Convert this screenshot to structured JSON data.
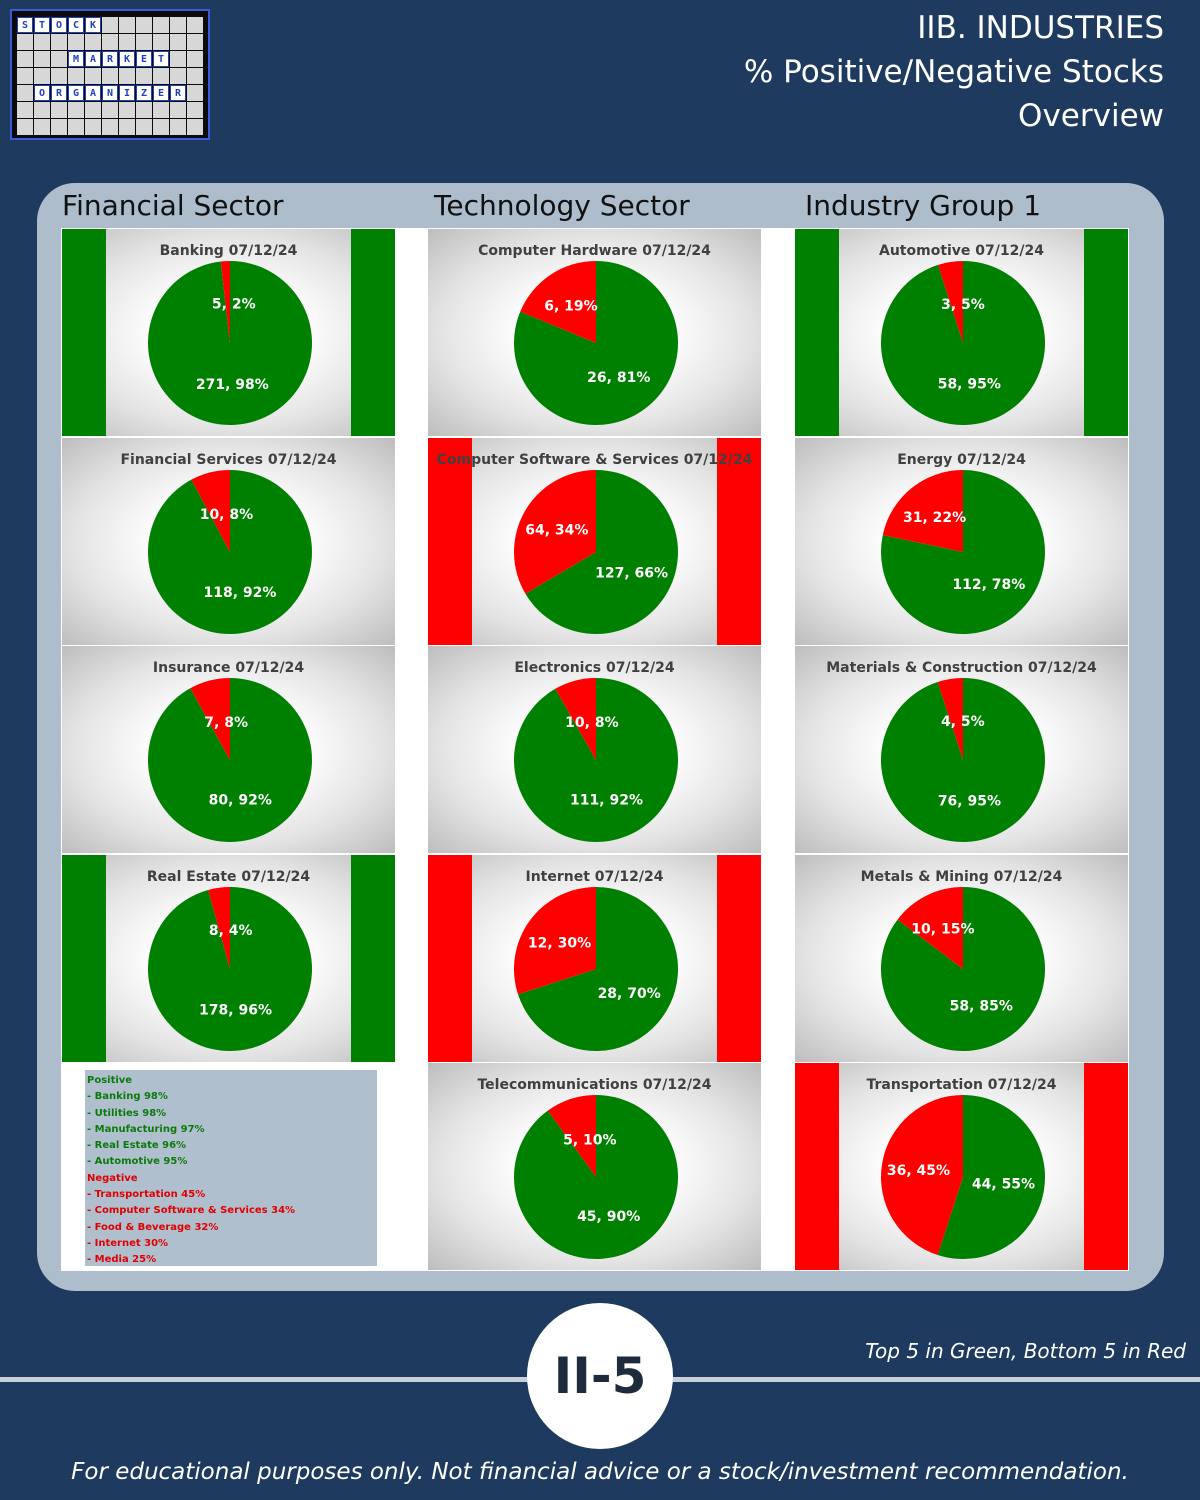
{
  "logo": {
    "words": [
      "STOCK",
      "MARKET",
      "ORGANIZER"
    ]
  },
  "header": {
    "line1": "IIB. INDUSTRIES",
    "line2": "% Positive/Negative Stocks",
    "line3": "Overview"
  },
  "sectors": [
    "Financial Sector",
    "Technology Sector",
    "Industry Group 1"
  ],
  "colors": {
    "positive": "#008000",
    "negative": "#ff0000",
    "background": "#1e3a5f"
  },
  "chart_data": [
    {
      "type": "pie",
      "title": "Banking 07/12/24",
      "categories": [
        "Negative",
        "Positive"
      ],
      "values": [
        5,
        271
      ],
      "percents": [
        2,
        98
      ],
      "labels": [
        "5, 2%",
        "271, 98%"
      ],
      "highlight": "top5"
    },
    {
      "type": "pie",
      "title": "Computer Hardware 07/12/24",
      "categories": [
        "Negative",
        "Positive"
      ],
      "values": [
        6,
        26
      ],
      "percents": [
        19,
        81
      ],
      "labels": [
        "6, 19%",
        "26, 81%"
      ],
      "highlight": "none"
    },
    {
      "type": "pie",
      "title": "Automotive 07/12/24",
      "categories": [
        "Negative",
        "Positive"
      ],
      "values": [
        3,
        58
      ],
      "percents": [
        5,
        95
      ],
      "labels": [
        "3, 5%",
        "58, 95%"
      ],
      "highlight": "top5"
    },
    {
      "type": "pie",
      "title": "Financial Services 07/12/24",
      "categories": [
        "Negative",
        "Positive"
      ],
      "values": [
        10,
        118
      ],
      "percents": [
        8,
        92
      ],
      "labels": [
        "10, 8%",
        "118, 92%"
      ],
      "highlight": "none"
    },
    {
      "type": "pie",
      "title": "Computer Software & Services 07/12/24",
      "categories": [
        "Negative",
        "Positive"
      ],
      "values": [
        64,
        127
      ],
      "percents": [
        34,
        66
      ],
      "labels": [
        "64, 34%",
        "127, 66%"
      ],
      "highlight": "bottom5"
    },
    {
      "type": "pie",
      "title": "Energy 07/12/24",
      "categories": [
        "Negative",
        "Positive"
      ],
      "values": [
        31,
        112
      ],
      "percents": [
        22,
        78
      ],
      "labels": [
        "31, 22%",
        "112, 78%"
      ],
      "highlight": "none"
    },
    {
      "type": "pie",
      "title": "Insurance 07/12/24",
      "categories": [
        "Negative",
        "Positive"
      ],
      "values": [
        7,
        80
      ],
      "percents": [
        8,
        92
      ],
      "labels": [
        "7, 8%",
        "80, 92%"
      ],
      "highlight": "none"
    },
    {
      "type": "pie",
      "title": "Electronics 07/12/24",
      "categories": [
        "Negative",
        "Positive"
      ],
      "values": [
        10,
        111
      ],
      "percents": [
        8,
        92
      ],
      "labels": [
        "10, 8%",
        "111, 92%"
      ],
      "highlight": "none"
    },
    {
      "type": "pie",
      "title": "Materials & Construction 07/12/24",
      "categories": [
        "Negative",
        "Positive"
      ],
      "values": [
        4,
        76
      ],
      "percents": [
        5,
        95
      ],
      "labels": [
        "4, 5%",
        "76, 95%"
      ],
      "highlight": "none"
    },
    {
      "type": "pie",
      "title": "Real Estate 07/12/24",
      "categories": [
        "Negative",
        "Positive"
      ],
      "values": [
        8,
        178
      ],
      "percents": [
        4,
        96
      ],
      "labels": [
        "8, 4%",
        "178, 96%"
      ],
      "highlight": "top5"
    },
    {
      "type": "pie",
      "title": "Internet 07/12/24",
      "categories": [
        "Negative",
        "Positive"
      ],
      "values": [
        12,
        28
      ],
      "percents": [
        30,
        70
      ],
      "labels": [
        "12, 30%",
        "28, 70%"
      ],
      "highlight": "bottom5"
    },
    {
      "type": "pie",
      "title": "Metals & Mining 07/12/24",
      "categories": [
        "Negative",
        "Positive"
      ],
      "values": [
        10,
        58
      ],
      "percents": [
        15,
        85
      ],
      "labels": [
        "10, 15%",
        "58, 85%"
      ],
      "highlight": "none"
    },
    {
      "type": "pie",
      "title": "Telecommunications 07/12/24",
      "categories": [
        "Negative",
        "Positive"
      ],
      "values": [
        5,
        45
      ],
      "percents": [
        10,
        90
      ],
      "labels": [
        "5, 10%",
        "45, 90%"
      ],
      "highlight": "none"
    },
    {
      "type": "pie",
      "title": "Transportation 07/12/24",
      "categories": [
        "Negative",
        "Positive"
      ],
      "values": [
        36,
        44
      ],
      "percents": [
        45,
        55
      ],
      "labels": [
        "36, 45%",
        "44, 55%"
      ],
      "highlight": "bottom5"
    }
  ],
  "legend": {
    "positive_title": "Positive",
    "positive": [
      "- Banking 98%",
      "- Utilities 98%",
      "- Manufacturing 97%",
      "- Real Estate 96%",
      "- Automotive 95%"
    ],
    "negative_title": "Negative",
    "negative": [
      "- Transportation 45%",
      "- Computer Software & Services 34%",
      "- Food & Beverage 32%",
      "- Internet 30%",
      "- Media 25%"
    ]
  },
  "note": "Top 5 in Green, Bottom 5 in Red",
  "page_number": "II-5",
  "disclaimer": "For educational purposes only. Not financial advice or a stock/investment recommendation."
}
